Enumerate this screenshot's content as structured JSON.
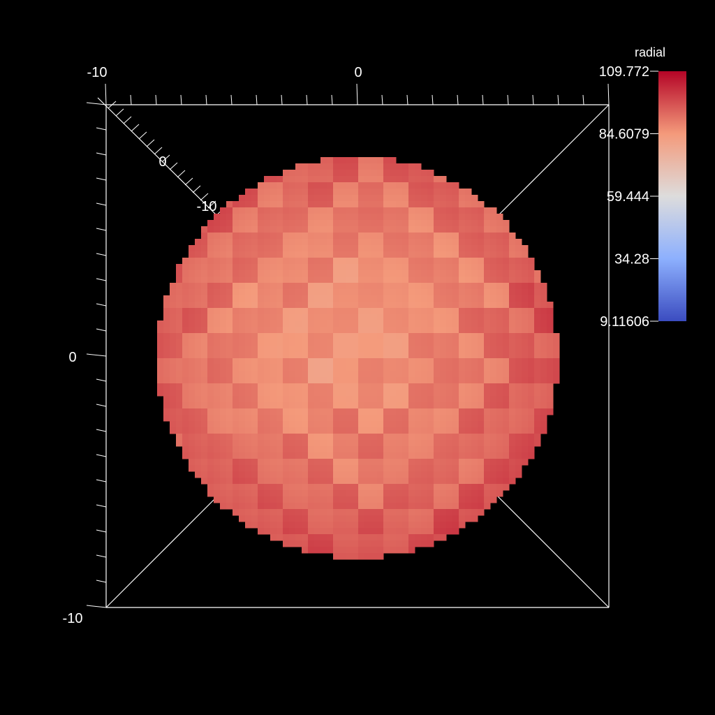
{
  "chart_data": {
    "type": "heatmap",
    "variable": "radial",
    "colormap": "coolwarm",
    "colors": {
      "background": "#000000",
      "low": "#3b4cc0",
      "mid": "#dddcdc",
      "high": "#b40426",
      "axis": "#ffffff"
    },
    "colorbar": {
      "title": "radial",
      "min": 9.11606,
      "max": 109.772,
      "tick_labels": [
        "109.772",
        "84.6079",
        "59.444",
        "34.28",
        "9.11606"
      ],
      "tick_values": [
        109.772,
        84.6079,
        59.444,
        34.28,
        9.11606
      ],
      "placement": "top-right"
    },
    "axes": {
      "top_labels": [
        "-10",
        "0"
      ],
      "left_labels": [
        "0",
        "-10"
      ],
      "depth_labels": [
        "0",
        "-10"
      ],
      "xlim": [
        -10,
        10
      ],
      "ylim": [
        -10,
        10
      ],
      "zlim": [
        -10,
        10
      ]
    },
    "object": "sphere",
    "grid": false
  }
}
